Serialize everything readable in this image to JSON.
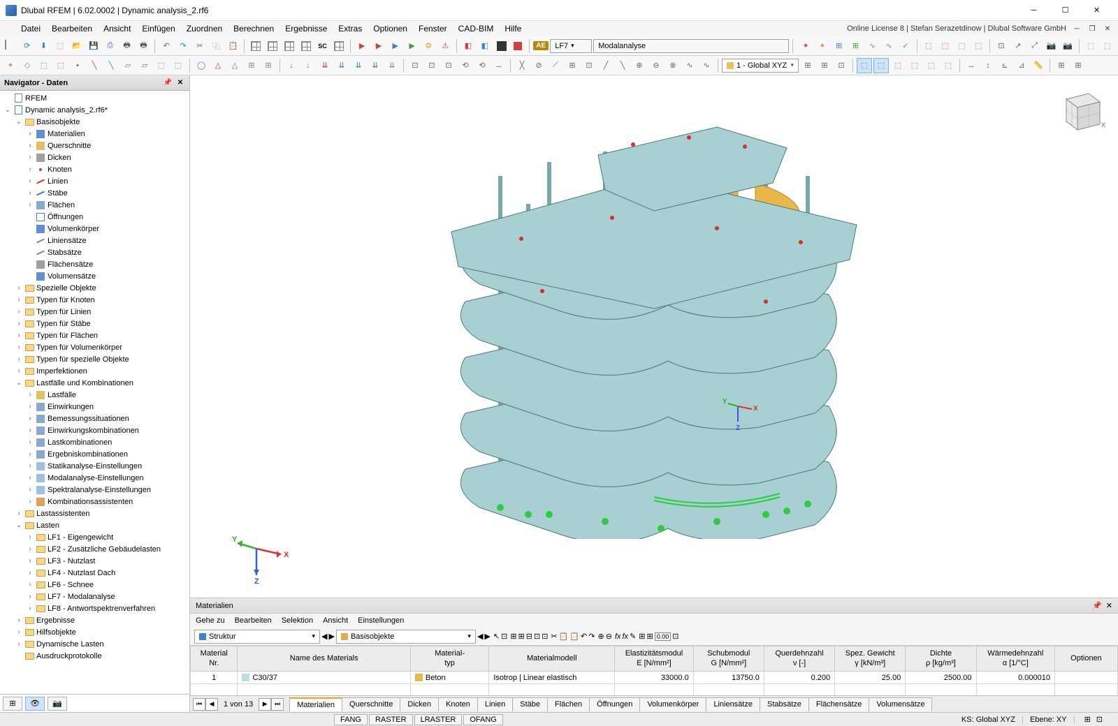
{
  "app": {
    "title": "Dlubal RFEM | 6.02.0002 | Dynamic analysis_2.rf6",
    "license": "Online License 8 | Stefan Serazetdinow | Dlubal Software GmbH"
  },
  "menus": [
    "Datei",
    "Bearbeiten",
    "Ansicht",
    "Einfügen",
    "Zuordnen",
    "Berechnen",
    "Ergebnisse",
    "Extras",
    "Optionen",
    "Fenster",
    "CAD-BIM",
    "Hilfe"
  ],
  "toolbar1": {
    "ae_badge": "AE",
    "lf_label": "LF7",
    "lf_name": "Modalanalyse"
  },
  "toolbar2": {
    "coord": "1 - Global XYZ"
  },
  "navigator": {
    "title": "Navigator - Daten",
    "root": "RFEM",
    "model": "Dynamic analysis_2.rf6*",
    "groups": {
      "basis": "Basisobjekte",
      "basis_items": [
        "Materialien",
        "Querschnitte",
        "Dicken",
        "Knoten",
        "Linien",
        "Stäbe",
        "Flächen",
        "Öffnungen",
        "Volumenkörper",
        "Liniensätze",
        "Stabsätze",
        "Flächensätze",
        "Volumensätze"
      ],
      "spezielle": "Spezielle Objekte",
      "typen": [
        "Typen für Knoten",
        "Typen für Linien",
        "Typen für Stäbe",
        "Typen für Flächen",
        "Typen für Volumenkörper",
        "Typen für spezielle Objekte"
      ],
      "imperfektionen": "Imperfektionen",
      "lastfaelle": "Lastfälle und Kombinationen",
      "lastfaelle_items": [
        "Lastfälle",
        "Einwirkungen",
        "Bemessungssituationen",
        "Einwirkungskombinationen",
        "Lastkombinationen",
        "Ergebniskombinationen",
        "Statikanalyse-Einstellungen",
        "Modalanalyse-Einstellungen",
        "Spektralanalyse-Einstellungen",
        "Kombinationsassistenten"
      ],
      "lastassistenten": "Lastassistenten",
      "lasten": "Lasten",
      "lasten_items": [
        "LF1 - Eigengewicht",
        "LF2 - Zusätzliche Gebäudelasten",
        "LF3 - Nutzlast",
        "LF4 - Nutzlast Dach",
        "LF6 - Schnee",
        "LF7 - Modalanalyse",
        "LF8 - Antwortspektrenverfahren"
      ],
      "ergebnisse": "Ergebnisse",
      "hilfsobjekte": "Hilfsobjekte",
      "dynamische": "Dynamische Lasten",
      "ausdruck": "Ausdruckprotokolle"
    }
  },
  "bottom": {
    "title": "Materialien",
    "menus": [
      "Gehe zu",
      "Bearbeiten",
      "Selektion",
      "Ansicht",
      "Einstellungen"
    ],
    "combo1": "Struktur",
    "combo2": "Basisobjekte",
    "columns": {
      "nr": "Material\nNr.",
      "name": "Name des Materials",
      "typ": "Material-\ntyp",
      "modell": "Materialmodell",
      "e": "Elastizitätsmodul\nE [N/mm²]",
      "g": "Schubmodul\nG [N/mm²]",
      "v": "Querdehnzahl\nν [-]",
      "gamma": "Spez. Gewicht\nγ [kN/m³]",
      "rho": "Dichte\nρ [kg/m³]",
      "alpha": "Wärmedehnzahl\nα [1/°C]",
      "opt": "Optionen"
    },
    "row": {
      "nr": "1",
      "name": "C30/37",
      "swatch": "#bcdde0",
      "typ": "Beton",
      "typ_swatch": "#e8b84a",
      "modell": "Isotrop | Linear elastisch",
      "e": "33000.0",
      "g": "13750.0",
      "v": "0.200",
      "gamma": "25.00",
      "rho": "2500.00",
      "alpha": "0.000010"
    },
    "pager": "1 von 13",
    "tabs": [
      "Materialien",
      "Querschnitte",
      "Dicken",
      "Knoten",
      "Linien",
      "Stäbe",
      "Flächen",
      "Öffnungen",
      "Volumenkörper",
      "Liniensätze",
      "Stabsätze",
      "Flächensätze",
      "Volumensätze"
    ]
  },
  "status": {
    "snap": [
      "FANG",
      "RASTER",
      "LRASTER",
      "OFANG"
    ],
    "ks_label": "KS:",
    "ks": "Global XYZ",
    "ebene_label": "Ebene:",
    "ebene": "XY"
  },
  "colors": {
    "slab": "#a8cfd1",
    "slab_edge": "#4a7a7d",
    "wall": "#e8b84a",
    "column": "#9bc4c6",
    "support": "#2ecc40",
    "axis_x": "#e03030",
    "axis_y": "#30b030",
    "axis_z": "#3060e0"
  }
}
